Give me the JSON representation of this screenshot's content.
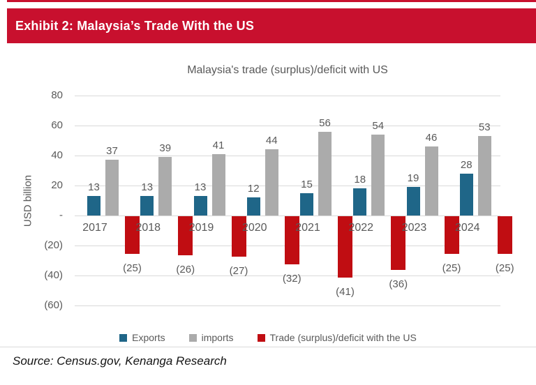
{
  "header": {
    "title": "Exhibit 2: Malaysia’s Trade With the US",
    "banner_color": "#C8102E"
  },
  "chart_data": {
    "type": "bar",
    "title": "Malaysia's trade (surplus)/deficit with US",
    "ylabel": "USD billion",
    "xlabel": "",
    "categories": [
      "2017",
      "2018",
      "2019",
      "2020",
      "2021",
      "2022",
      "2023",
      "2024"
    ],
    "series": [
      {
        "name": "Exports",
        "color": "#1F6688",
        "values": [
          13,
          13,
          13,
          12,
          15,
          18,
          19,
          28
        ]
      },
      {
        "name": "imports",
        "color": "#ABABAB",
        "values": [
          37,
          39,
          41,
          44,
          56,
          54,
          46,
          53
        ]
      },
      {
        "name": "Trade (surplus)/deficit with the US",
        "color": "#C00D12",
        "values": [
          -25,
          -26,
          -27,
          -32,
          -41,
          -36,
          -25,
          -25
        ]
      }
    ],
    "value_label_format": "negatives-in-parentheses",
    "ylim": [
      -60,
      80
    ],
    "ytick_step": 20,
    "ytick_labels": [
      "80",
      "60",
      "40",
      "20",
      "-",
      "(20)",
      "(40)",
      "(60)"
    ],
    "grid": true,
    "grid_color": "#D9D9D9",
    "label_color": "#595959",
    "legend_position": "bottom"
  },
  "source": {
    "text": "Source: Census.gov, Kenanga Research"
  }
}
